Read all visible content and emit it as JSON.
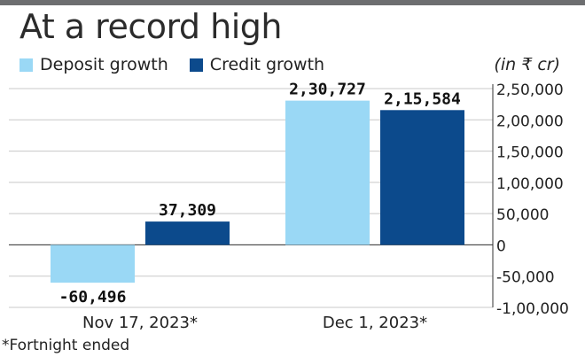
{
  "title": "At a record high",
  "unit_label": "(in ₹ cr)",
  "footnote": "*Fortnight ended",
  "colors": {
    "deposit": "#9ad8f5",
    "credit": "#0c4a8c",
    "rule": "#6d6e70",
    "grid": "#c8c8c8",
    "axis": "#333333"
  },
  "chart_data": {
    "type": "bar",
    "categories": [
      "Nov 17, 2023*",
      "Dec 1, 2023*"
    ],
    "series": [
      {
        "name": "Deposit growth",
        "values": [
          -60496,
          230727
        ],
        "labels": [
          "-60,496",
          "2,30,727"
        ]
      },
      {
        "name": "Credit growth",
        "values": [
          37309,
          215584
        ],
        "labels": [
          "37,309",
          "2,15,584"
        ]
      }
    ],
    "yticks": [
      250000,
      200000,
      150000,
      100000,
      50000,
      0,
      -50000,
      -100000
    ],
    "ytick_labels": [
      "2,50,000",
      "2,00,000",
      "1,50,000",
      "1,00,000",
      "50,000",
      "0",
      "-50,000",
      "-1,00,000"
    ],
    "ylim": [
      -100000,
      250000
    ],
    "ylabel": "(in ₹ cr)",
    "grid": true,
    "legend_position": "top-left"
  }
}
